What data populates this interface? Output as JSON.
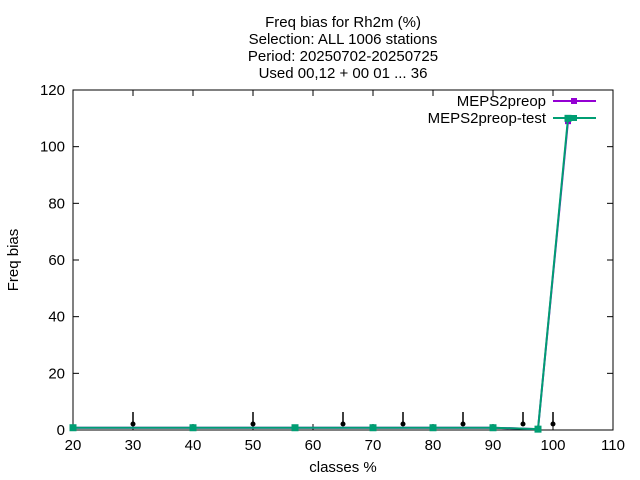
{
  "chart_data": {
    "type": "line",
    "title_lines": [
      "Freq bias  for Rh2m (%)",
      "Selection: ALL    1006 stations",
      "Period: 20250702-20250725",
      "Used 00,12 + 00 01 ... 36"
    ],
    "xlabel": "classes %",
    "ylabel": "Freq bias",
    "xlim": [
      20,
      110
    ],
    "ylim": [
      0,
      120
    ],
    "xticks": [
      20,
      30,
      40,
      50,
      60,
      70,
      80,
      90,
      100,
      110
    ],
    "yticks": [
      0,
      20,
      40,
      60,
      80,
      100,
      120
    ],
    "legend_position": "top-right",
    "series": [
      {
        "name": "MEPS2preop",
        "color": "#9400d3",
        "x": [
          20,
          40,
          57,
          70,
          80,
          90,
          97.5,
          102.5
        ],
        "y": [
          0.8,
          0.8,
          0.8,
          0.8,
          0.8,
          0.8,
          0.3,
          109
        ]
      },
      {
        "name": "MEPS2preop-test",
        "color": "#009e73",
        "x": [
          20,
          40,
          57,
          70,
          80,
          90,
          97.5,
          102.5
        ],
        "y": [
          0.8,
          0.8,
          0.8,
          0.8,
          0.8,
          0.8,
          0.3,
          110
        ]
      }
    ],
    "arrow_markers": {
      "color": "#000000",
      "x": [
        30,
        50,
        65,
        75,
        85,
        95,
        100
      ]
    }
  }
}
